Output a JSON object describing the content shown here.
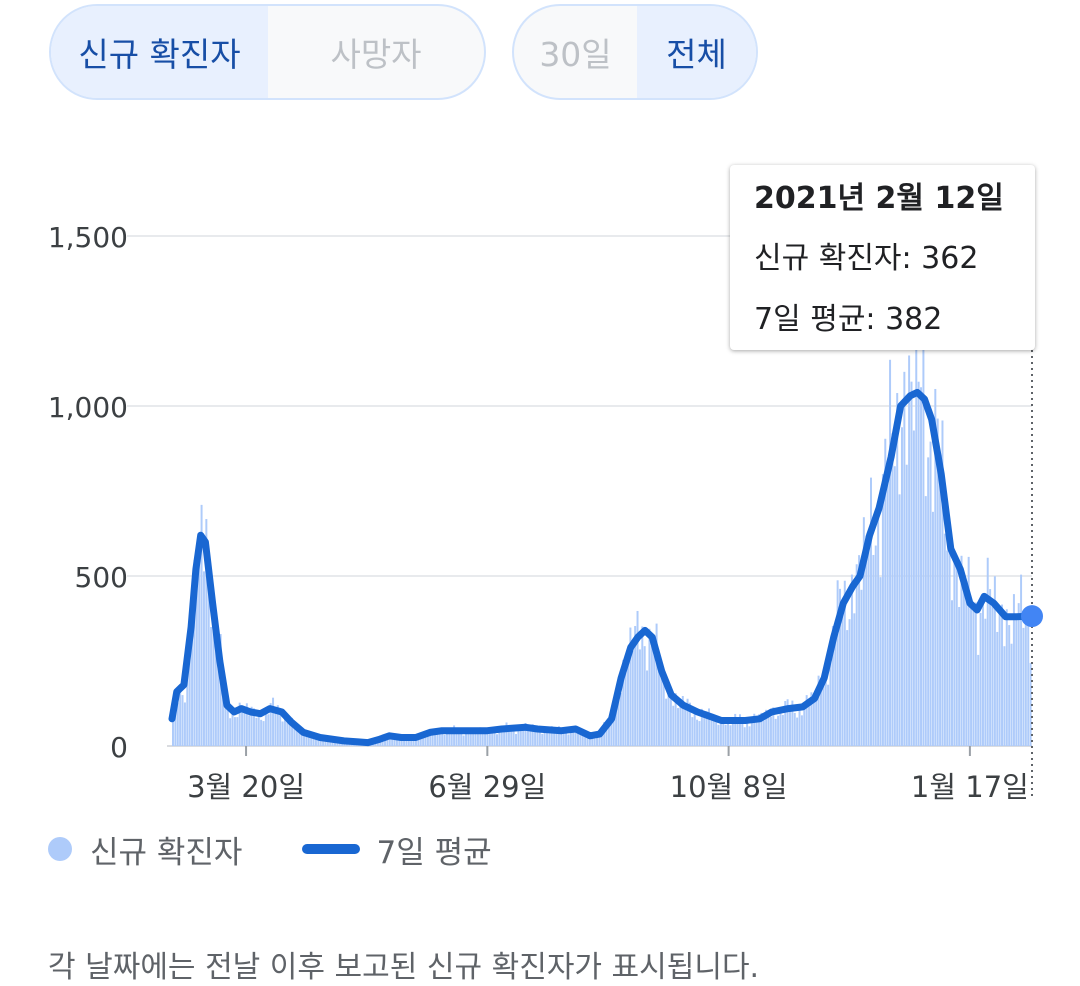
{
  "metric_toggle": {
    "options": [
      "신규 확진자",
      "사망자"
    ],
    "selected": 0
  },
  "range_toggle": {
    "options": [
      "30일",
      "전체"
    ],
    "selected": 1
  },
  "tooltip": {
    "date": "2021년 2월 12일",
    "new_cases": "신규 확진자: 362",
    "avg": "7일 평균: 382"
  },
  "legend": {
    "bars": "신규 확진자",
    "line": "7일 평균"
  },
  "footnote": "각 날짜에는 전날 이후 보고된 신규 확진자가 표시됩니다.",
  "colors": {
    "bar": "#aecbfa",
    "line": "#1967d2",
    "grid": "#e8eaed",
    "marker": "#4285f4"
  },
  "chart_data": {
    "type": "bar",
    "title": "",
    "xlabel": "",
    "ylabel": "",
    "ylim": [
      0,
      1650
    ],
    "yticks": [
      0,
      500,
      1000,
      1500
    ],
    "ytick_labels": [
      "0",
      "500",
      "1,000",
      "1,500"
    ],
    "x_start": "2020-02-18",
    "x_end": "2021-02-12",
    "xticks": [
      {
        "date": "2020-03-20",
        "label": "3월 20일"
      },
      {
        "date": "2020-06-29",
        "label": "6월 29일"
      },
      {
        "date": "2020-10-08",
        "label": "10월 8일"
      },
      {
        "date": "2021-01-17",
        "label": "1월 17일"
      }
    ],
    "highlight": {
      "date": "2021-02-12",
      "new_cases": 362,
      "avg": 382
    },
    "series": [
      {
        "name": "신규 확진자",
        "kind": "bar"
      },
      {
        "name": "7일 평균",
        "kind": "line"
      }
    ],
    "avg_points": [
      [
        "2020-02-18",
        80
      ],
      [
        "2020-02-20",
        160
      ],
      [
        "2020-02-23",
        180
      ],
      [
        "2020-02-26",
        350
      ],
      [
        "2020-02-28",
        520
      ],
      [
        "2020-03-01",
        620
      ],
      [
        "2020-03-03",
        600
      ],
      [
        "2020-03-06",
        420
      ],
      [
        "2020-03-09",
        250
      ],
      [
        "2020-03-12",
        120
      ],
      [
        "2020-03-15",
        100
      ],
      [
        "2020-03-18",
        110
      ],
      [
        "2020-03-22",
        100
      ],
      [
        "2020-03-26",
        95
      ],
      [
        "2020-03-30",
        110
      ],
      [
        "2020-04-04",
        100
      ],
      [
        "2020-04-08",
        70
      ],
      [
        "2020-04-13",
        40
      ],
      [
        "2020-04-20",
        25
      ],
      [
        "2020-04-30",
        15
      ],
      [
        "2020-05-06",
        12
      ],
      [
        "2020-05-10",
        10
      ],
      [
        "2020-05-15",
        20
      ],
      [
        "2020-05-19",
        30
      ],
      [
        "2020-05-24",
        25
      ],
      [
        "2020-05-30",
        25
      ],
      [
        "2020-06-05",
        40
      ],
      [
        "2020-06-10",
        45
      ],
      [
        "2020-06-20",
        45
      ],
      [
        "2020-06-29",
        45
      ],
      [
        "2020-07-05",
        50
      ],
      [
        "2020-07-15",
        55
      ],
      [
        "2020-07-20",
        50
      ],
      [
        "2020-07-30",
        45
      ],
      [
        "2020-08-05",
        50
      ],
      [
        "2020-08-08",
        40
      ],
      [
        "2020-08-11",
        30
      ],
      [
        "2020-08-15",
        35
      ],
      [
        "2020-08-20",
        80
      ],
      [
        "2020-08-24",
        200
      ],
      [
        "2020-08-28",
        290
      ],
      [
        "2020-08-31",
        320
      ],
      [
        "2020-09-03",
        340
      ],
      [
        "2020-09-06",
        320
      ],
      [
        "2020-09-10",
        220
      ],
      [
        "2020-09-14",
        150
      ],
      [
        "2020-09-19",
        120
      ],
      [
        "2020-09-25",
        100
      ],
      [
        "2020-10-01",
        85
      ],
      [
        "2020-10-05",
        75
      ],
      [
        "2020-10-10",
        75
      ],
      [
        "2020-10-15",
        75
      ],
      [
        "2020-10-21",
        80
      ],
      [
        "2020-10-26",
        100
      ],
      [
        "2020-11-02",
        110
      ],
      [
        "2020-11-08",
        115
      ],
      [
        "2020-11-13",
        140
      ],
      [
        "2020-11-17",
        200
      ],
      [
        "2020-11-21",
        320
      ],
      [
        "2020-11-25",
        420
      ],
      [
        "2020-11-29",
        470
      ],
      [
        "2020-12-02",
        500
      ],
      [
        "2020-12-06",
        620
      ],
      [
        "2020-12-10",
        700
      ],
      [
        "2020-12-15",
        850
      ],
      [
        "2020-12-19",
        1000
      ],
      [
        "2020-12-23",
        1030
      ],
      [
        "2020-12-26",
        1040
      ],
      [
        "2020-12-29",
        1020
      ],
      [
        "2021-01-01",
        960
      ],
      [
        "2021-01-05",
        800
      ],
      [
        "2021-01-09",
        580
      ],
      [
        "2021-01-13",
        520
      ],
      [
        "2021-01-17",
        420
      ],
      [
        "2021-01-20",
        400
      ],
      [
        "2021-01-23",
        440
      ],
      [
        "2021-01-27",
        420
      ],
      [
        "2021-02-01",
        380
      ],
      [
        "2021-02-05",
        380
      ],
      [
        "2021-02-12",
        382
      ]
    ]
  }
}
